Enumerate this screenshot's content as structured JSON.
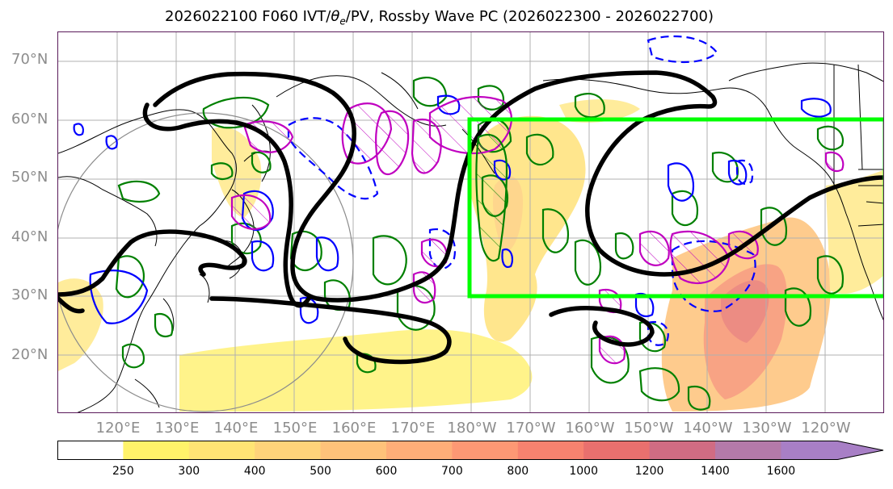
{
  "title": {
    "prefix": "2026022100 F060 IVT/",
    "theta": "θ",
    "theta_sub": "e",
    "suffix": "/PV, Rossby Wave PC (2026022300 - 2026022700)"
  },
  "lat_labels": [
    "70°N",
    "60°N",
    "50°N",
    "40°N",
    "30°N",
    "20°N"
  ],
  "lon_labels": [
    "120°E",
    "130°E",
    "140°E",
    "150°E",
    "160°E",
    "170°E",
    "180°W",
    "170°W",
    "160°W",
    "150°W",
    "140°W",
    "130°W",
    "120°W"
  ],
  "colorbar": {
    "labels": [
      "250",
      "300",
      "400",
      "500",
      "600",
      "700",
      "800",
      "1000",
      "1200",
      "1400",
      "1600"
    ],
    "colors": [
      "#ffffff",
      "#fff36a",
      "#ffe474",
      "#fed37a",
      "#fec27a",
      "#feae78",
      "#fd9874",
      "#f7826f",
      "#e9706e",
      "#d06c83",
      "#b47aa9",
      "#a87fc6"
    ]
  },
  "overlay_colors": {
    "ivt_fill": "#ffd15a",
    "pv_contour": "#000000",
    "green_contour": "#008000",
    "blue_contour": "#0000ff",
    "magenta_contour": "#c000c0",
    "target_box": "#00ff00"
  }
}
